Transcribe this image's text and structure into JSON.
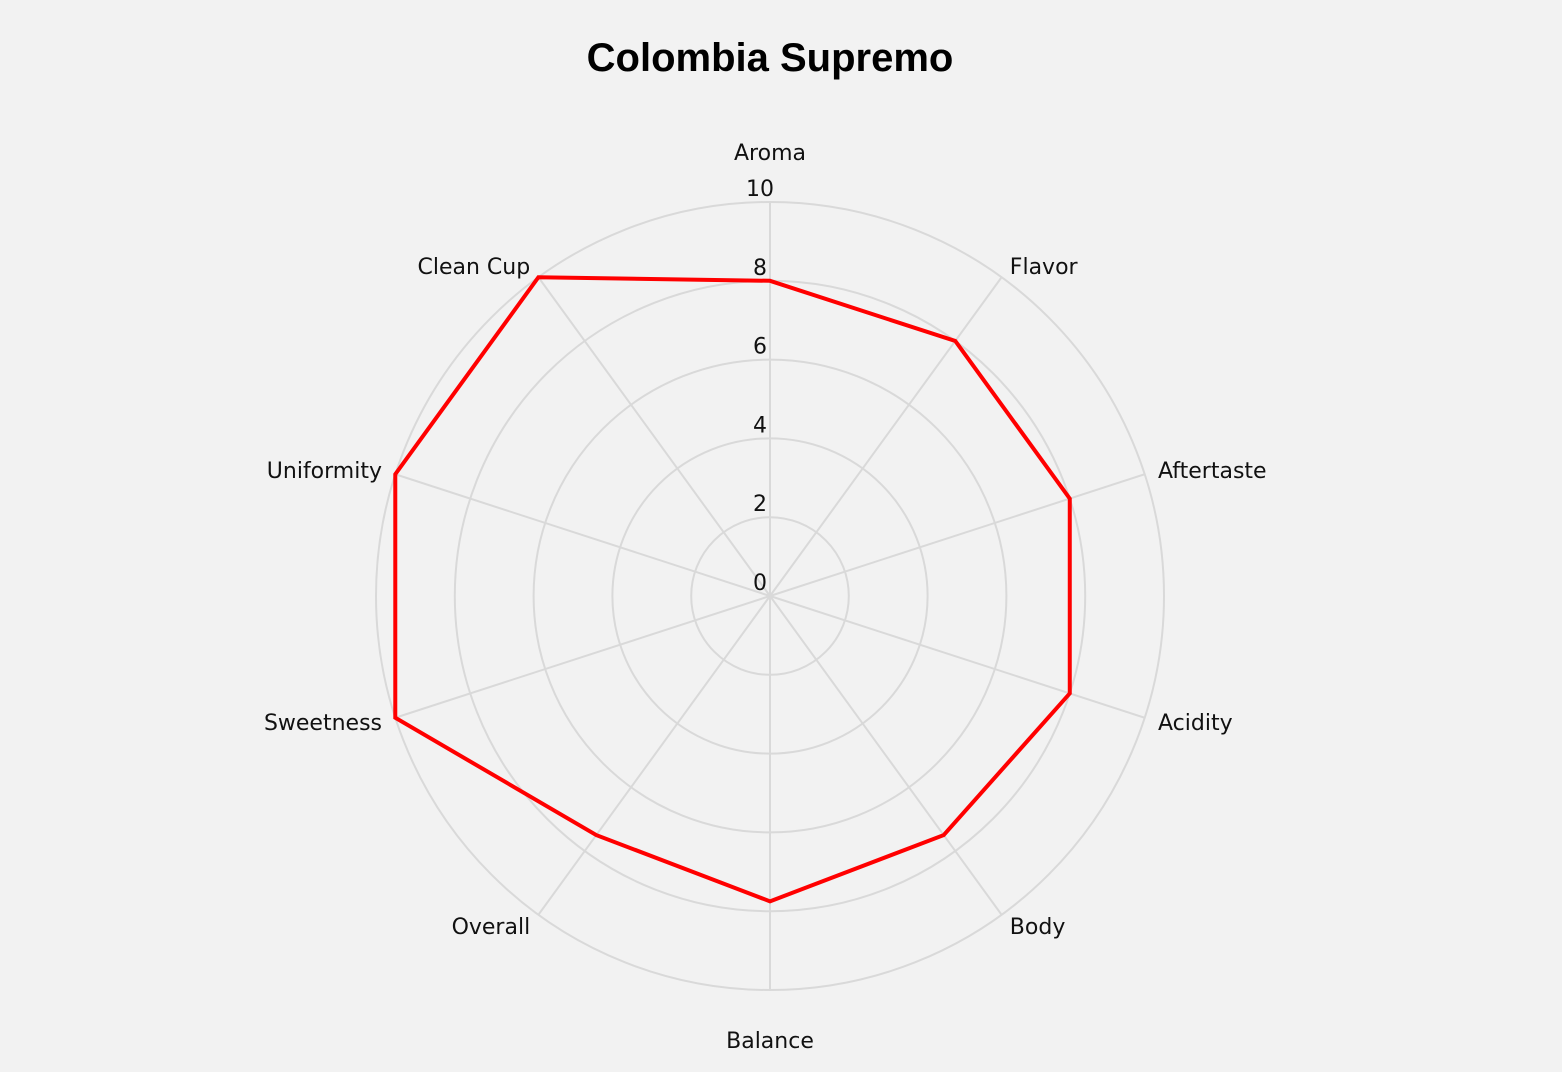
{
  "chart_data": {
    "type": "radar",
    "title": "Colombia Supremo",
    "categories": [
      "Aroma",
      "Flavor",
      "Aftertaste",
      "Acidity",
      "Body",
      "Balance",
      "Overall",
      "Sweetness",
      "Uniformity",
      "Clean Cup"
    ],
    "series": [
      {
        "values": [
          8.0,
          8.0,
          8.0,
          8.0,
          7.5,
          7.75,
          7.5,
          10,
          10,
          10
        ]
      }
    ],
    "radial_ticks": [
      "0",
      "2",
      "4",
      "6",
      "8",
      "10"
    ],
    "rlim": [
      0,
      10
    ],
    "grid": true,
    "legend": "none",
    "colors": {
      "series": "#ff0000",
      "grid": "#d9d9d9",
      "background": "#f2f2f2"
    }
  }
}
